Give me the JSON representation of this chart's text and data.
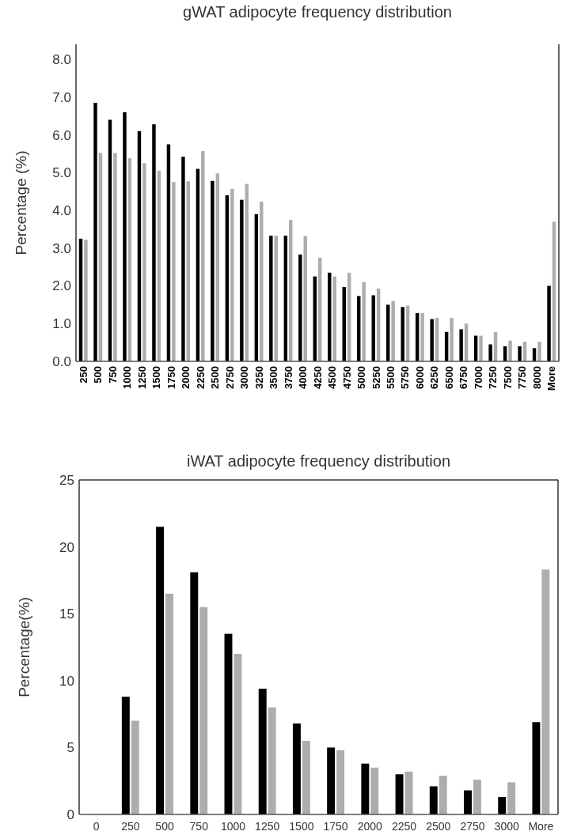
{
  "chart_data": [
    {
      "type": "bar",
      "title": "gWAT adipocyte frequency distribution",
      "ylabel": "Percentage (%)",
      "categories": [
        "250",
        "500",
        "750",
        "1000",
        "1250",
        "1500",
        "1750",
        "2000",
        "2250",
        "2500",
        "2750",
        "3000",
        "3250",
        "3500",
        "3750",
        "4000",
        "4250",
        "4500",
        "4750",
        "5000",
        "5250",
        "5500",
        "5750",
        "6000",
        "6250",
        "6500",
        "6750",
        "7000",
        "7250",
        "7500",
        "7750",
        "8000",
        "More"
      ],
      "series": [
        {
          "color": "#000000",
          "values": [
            3.25,
            6.85,
            6.4,
            6.6,
            6.1,
            6.28,
            5.75,
            5.42,
            5.1,
            4.78,
            4.4,
            4.28,
            3.9,
            3.33,
            3.33,
            2.83,
            2.25,
            2.35,
            1.97,
            1.73,
            1.75,
            1.5,
            1.44,
            1.28,
            1.12,
            0.78,
            0.85,
            0.68,
            0.45,
            0.4,
            0.4,
            0.35,
            2.0
          ]
        },
        {
          "color": "#b0acab",
          "values": [
            3.22,
            5.52,
            5.52,
            5.38,
            5.25,
            5.05,
            4.75,
            4.77,
            5.57,
            4.98,
            4.57,
            4.7,
            4.23,
            3.33,
            3.75,
            3.32,
            2.75,
            2.25,
            2.35,
            2.1,
            1.93,
            1.6,
            1.48,
            1.28,
            1.15,
            1.15,
            1.0,
            0.68,
            0.78,
            0.55,
            0.52,
            0.52,
            3.7
          ]
        }
      ],
      "ylim": [
        0,
        8.4
      ],
      "yticks": [
        {
          "value": 0,
          "label": "0.0"
        },
        {
          "value": 1,
          "label": "1.0"
        },
        {
          "value": 2,
          "label": "2.0"
        },
        {
          "value": 3,
          "label": "3.0"
        },
        {
          "value": 4,
          "label": "4.0"
        },
        {
          "value": 5,
          "label": "5.0"
        },
        {
          "value": 6,
          "label": "6.0"
        },
        {
          "value": 7,
          "label": "7.0"
        },
        {
          "value": 8,
          "label": "8.0"
        }
      ],
      "grid": false
    },
    {
      "type": "bar",
      "title": "iWAT adipocyte frequency distribution",
      "ylabel": "Percentage(%)",
      "categories": [
        "0",
        "250",
        "500",
        "750",
        "1000",
        "1250",
        "1500",
        "1750",
        "2000",
        "2250",
        "2500",
        "2750",
        "3000",
        "More"
      ],
      "series": [
        {
          "color": "#000000",
          "values": [
            0,
            8.8,
            21.5,
            18.1,
            13.5,
            9.4,
            6.8,
            5.0,
            3.8,
            3.0,
            2.1,
            1.8,
            1.3,
            6.9
          ]
        },
        {
          "color": "#b0acab",
          "values": [
            0,
            7.0,
            16.5,
            15.5,
            12.0,
            8.0,
            5.5,
            4.8,
            3.5,
            3.2,
            2.9,
            2.6,
            2.4,
            18.3
          ]
        }
      ],
      "ylim": [
        0,
        25
      ],
      "yticks": [
        0,
        5,
        10,
        15,
        20,
        25
      ],
      "grid": false
    }
  ]
}
